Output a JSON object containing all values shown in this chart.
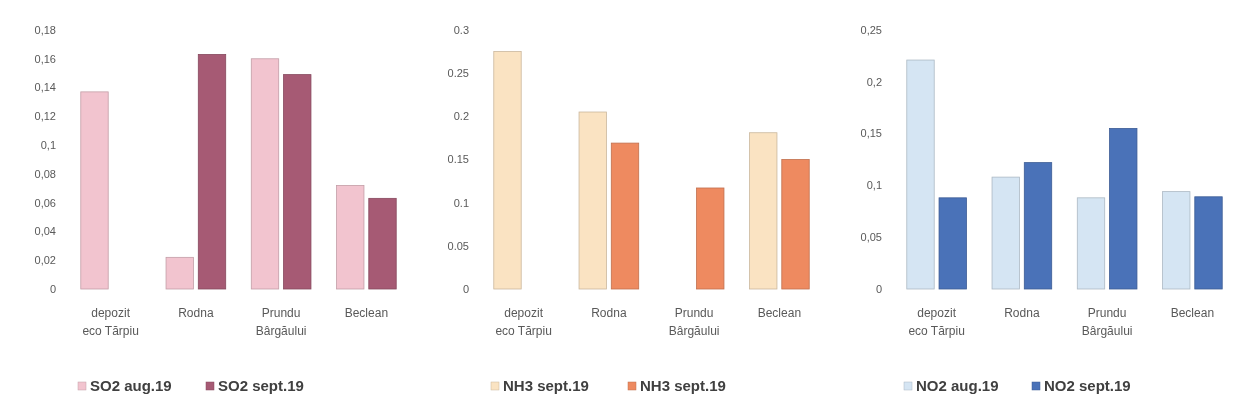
{
  "chart_data": [
    {
      "type": "bar",
      "categories": [
        "depozit eco Tărpiu",
        "Rodna",
        "Prundu Bârgăului",
        "Beclean"
      ],
      "series": [
        {
          "name": "SO2 aug.19",
          "color": "#f2c4cf",
          "values": [
            0.137,
            0.022,
            0.16,
            0.072
          ]
        },
        {
          "name": "SO2 sept.19",
          "color": "#a65a74",
          "values": [
            null,
            0.163,
            0.149,
            0.063
          ]
        }
      ],
      "ylim": [
        0,
        0.18
      ],
      "yticks": [
        0,
        {
          "value": 0.02,
          "label": "0,02"
        },
        {
          "value": 0.04,
          "label": "0,04"
        },
        {
          "value": 0.06,
          "label": "0,06"
        },
        {
          "value": 0.08,
          "label": "0,08"
        },
        {
          "value": 0.1,
          "label": "0,1"
        },
        {
          "value": 0.12,
          "label": "0,12"
        },
        {
          "value": 0.14,
          "label": "0,14"
        },
        {
          "value": 0.16,
          "label": "0,16"
        },
        {
          "value": 0.18,
          "label": "0,18"
        }
      ],
      "grid": false,
      "legend": "bottom"
    },
    {
      "type": "bar",
      "categories": [
        "depozit eco Tărpiu",
        "Rodna",
        "Prundu Bârgăului",
        "Beclean"
      ],
      "series": [
        {
          "name": "NH3 sept.19",
          "color": "#fae3c2",
          "values": [
            0.275,
            0.205,
            null,
            0.181
          ]
        },
        {
          "name": "NH3 sept.19",
          "color": "#ee8a60",
          "values": [
            null,
            0.169,
            0.117,
            0.15
          ]
        }
      ],
      "ylim": [
        0,
        0.3
      ],
      "yticks": [
        0,
        0.05,
        0.1,
        0.15,
        0.2,
        0.25,
        0.3
      ],
      "grid": false,
      "legend": "bottom"
    },
    {
      "type": "bar",
      "categories": [
        "depozit eco Tărpiu",
        "Rodna",
        "Prundu Bârgăului",
        "Beclean"
      ],
      "series": [
        {
          "name": "NO2 aug.19",
          "color": "#d5e5f3",
          "values": [
            0.221,
            0.108,
            0.088,
            0.094
          ]
        },
        {
          "name": "NO2 sept.19",
          "color": "#4a72b8",
          "values": [
            0.088,
            0.122,
            0.155,
            0.089
          ]
        }
      ],
      "ylim": [
        0,
        0.25
      ],
      "yticks": [
        0,
        {
          "value": 0.05,
          "label": "0,05"
        },
        {
          "value": 0.1,
          "label": "0,1"
        },
        {
          "value": 0.15,
          "label": "0,15"
        },
        {
          "value": 0.2,
          "label": "0,2"
        },
        {
          "value": 0.25,
          "label": "0,25"
        }
      ],
      "grid": false,
      "legend": "bottom"
    }
  ]
}
